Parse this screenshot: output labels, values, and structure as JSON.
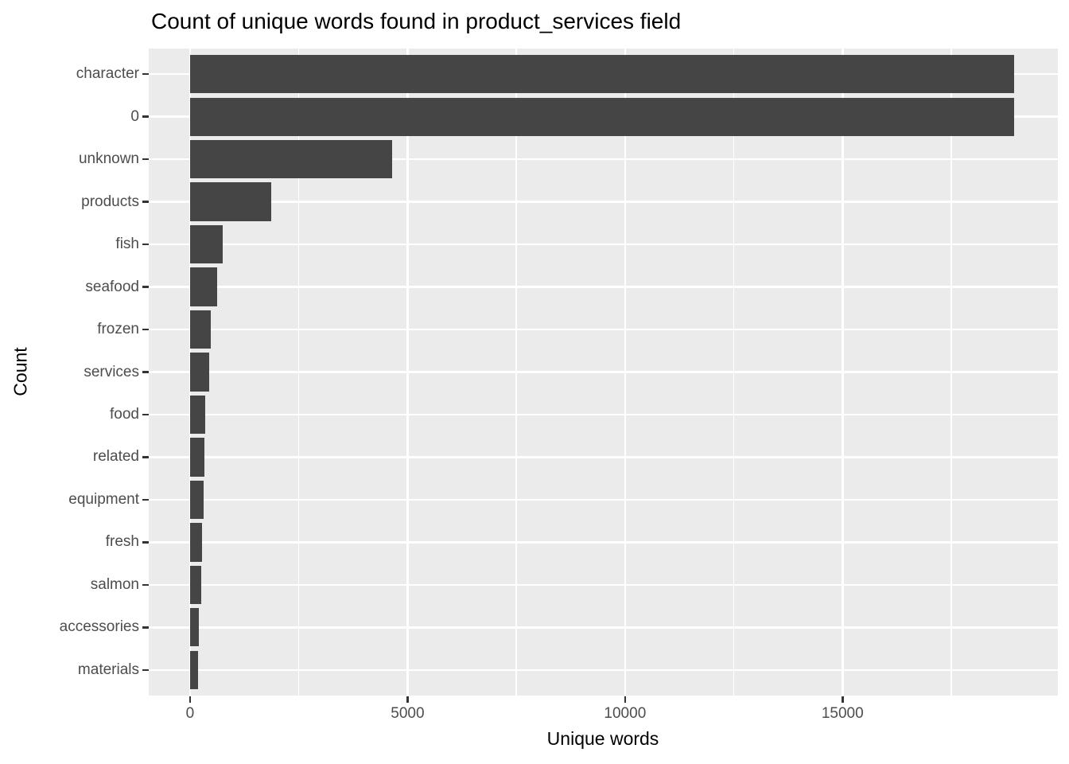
{
  "chart": {
    "title": "Count of unique words found in product_services field",
    "xlabel": "Unique words",
    "ylabel": "Count"
  },
  "chart_data": {
    "type": "bar",
    "orientation": "horizontal",
    "title": "Count of unique words found in product_services field",
    "xlabel": "Unique words",
    "ylabel": "Count",
    "categories": [
      "character",
      "0",
      "unknown",
      "products",
      "fish",
      "seafood",
      "frozen",
      "services",
      "food",
      "related",
      "equipment",
      "fresh",
      "salmon",
      "accessories",
      "materials"
    ],
    "values": [
      18950,
      18950,
      4650,
      1860,
      750,
      620,
      480,
      440,
      350,
      330,
      310,
      270,
      250,
      205,
      180
    ],
    "x_ticks": [
      0,
      5000,
      10000,
      15000
    ],
    "x_tick_labels": [
      "0",
      "5000",
      "10000",
      "15000"
    ],
    "x_minor_ticks": [
      2500,
      7500,
      12500,
      17500
    ],
    "x_domain": [
      -950,
      19950
    ],
    "grid": true,
    "legend": false,
    "colors": {
      "bar": "#454545",
      "panel": "#EBEBEB",
      "grid": "#FFFFFF",
      "tick_mark": "#333333",
      "tick_label": "#4D4D4D",
      "axis_title": "#000000",
      "background": "#FFFFFF"
    }
  }
}
